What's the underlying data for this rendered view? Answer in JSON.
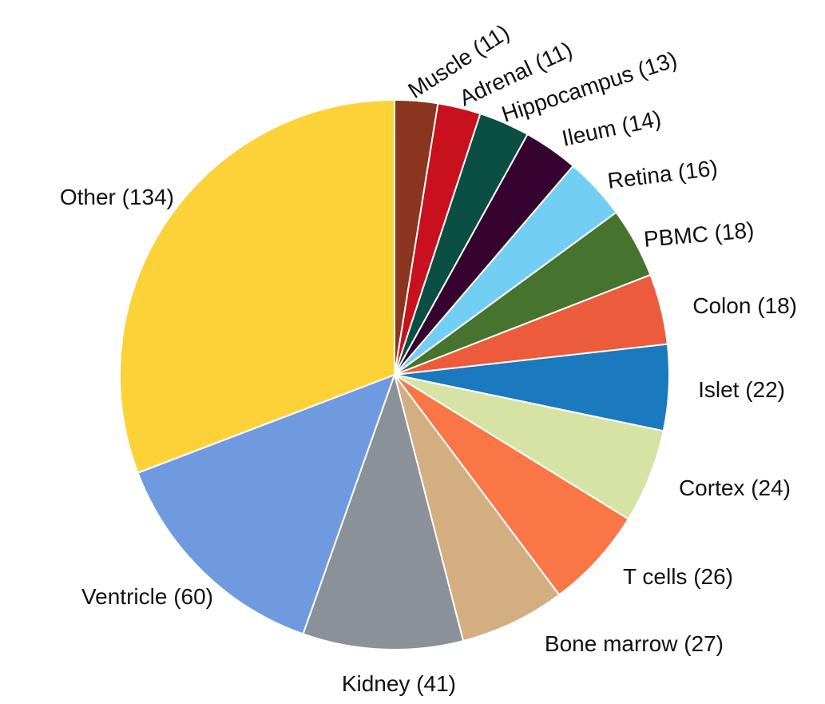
{
  "chart_data": {
    "type": "pie",
    "title": "",
    "slices": [
      {
        "label": "Muscle",
        "value": 11,
        "display": "Muscle (11)",
        "color": "#8B3420"
      },
      {
        "label": "Adrenal",
        "value": 11,
        "display": "Adrenal (11)",
        "color": "#C8101E"
      },
      {
        "label": "Hippocampus",
        "value": 13,
        "display": "Hippocampus (13)",
        "color": "#0B4F44"
      },
      {
        "label": "Ileum",
        "value": 14,
        "display": "Ileum (14)",
        "color": "#36022F"
      },
      {
        "label": "Retina",
        "value": 16,
        "display": "Retina (16)",
        "color": "#73CEF4"
      },
      {
        "label": "PBMC",
        "value": 18,
        "display": "PBMC (18)",
        "color": "#46732E"
      },
      {
        "label": "Colon",
        "value": 18,
        "display": "Colon (18)",
        "color": "#EC5B3C"
      },
      {
        "label": "Islet",
        "value": 22,
        "display": "Islet (22)",
        "color": "#1B79BE"
      },
      {
        "label": "Cortex",
        "value": 24,
        "display": "Cortex (24)",
        "color": "#D6E3A4"
      },
      {
        "label": "T cells",
        "value": 26,
        "display": "T cells (26)",
        "color": "#FB7646"
      },
      {
        "label": "Bone marrow",
        "value": 27,
        "display": "Bone marrow (27)",
        "color": "#D2AE80"
      },
      {
        "label": "Kidney",
        "value": 41,
        "display": "Kidney (41)",
        "color": "#8A9198"
      },
      {
        "label": "Ventricle",
        "value": 60,
        "display": "Ventricle (60)",
        "color": "#6F9AE0"
      },
      {
        "label": "Other",
        "value": 134,
        "display": "Other (134)",
        "color": "#FDD238"
      }
    ],
    "start_angle": "12 o'clock",
    "direction": "clockwise",
    "legend": "none"
  }
}
